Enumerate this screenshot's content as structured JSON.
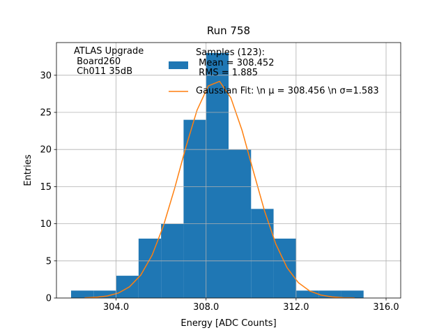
{
  "chart_data": {
    "type": "histogram",
    "title": "Run 758",
    "x_label": "Energy [ADC Counts]",
    "y_label": "Entries",
    "annotation": [
      "ATLAS Upgrade",
      " Board260",
      " Ch011 35dB"
    ],
    "bins": [
      302,
      303,
      304,
      305,
      306,
      307,
      308,
      309,
      310,
      311,
      312,
      313,
      314,
      315
    ],
    "series": [
      {
        "name": "Samples (123):\n Mean = 308.452\n RMS = 1.885",
        "color": "#1f77b4",
        "values": [
          1,
          1,
          3,
          8,
          10,
          24,
          33,
          20,
          12,
          8,
          1,
          1,
          1
        ]
      },
      {
        "name": "Gaussian Fit: \\n μ = 308.456 \\n σ=1.583",
        "color": "#ff7f0e",
        "type": "line",
        "x": [
          302.6,
          303.1,
          303.6,
          304.1,
          304.6,
          305.1,
          305.6,
          306.1,
          306.6,
          307.1,
          307.6,
          308.1,
          308.6,
          309.1,
          309.6,
          310.1,
          310.6,
          311.1,
          311.6,
          312.1,
          312.6,
          313.1,
          313.6,
          314.1,
          314.6
        ],
        "values": [
          0.03,
          0.1,
          0.27,
          0.66,
          1.51,
          3.1,
          5.76,
          9.67,
          14.74,
          20.3,
          25.31,
          28.57,
          29.18,
          26.97,
          22.57,
          17.09,
          11.71,
          7.26,
          4.08,
          2.07,
          0.95,
          0.4,
          0.15,
          0.05,
          0.02
        ]
      }
    ],
    "xlim": [
      301.35,
      316.65
    ],
    "ylim": [
      0,
      34.4
    ],
    "xticks": [
      {
        "value": 304,
        "label": "304.0"
      },
      {
        "value": 308,
        "label": "308.0"
      },
      {
        "value": 312,
        "label": "312.0"
      },
      {
        "value": 316,
        "label": "316.0"
      }
    ],
    "yticks": [
      0,
      5,
      10,
      15,
      20,
      25,
      30
    ],
    "grid": true
  }
}
